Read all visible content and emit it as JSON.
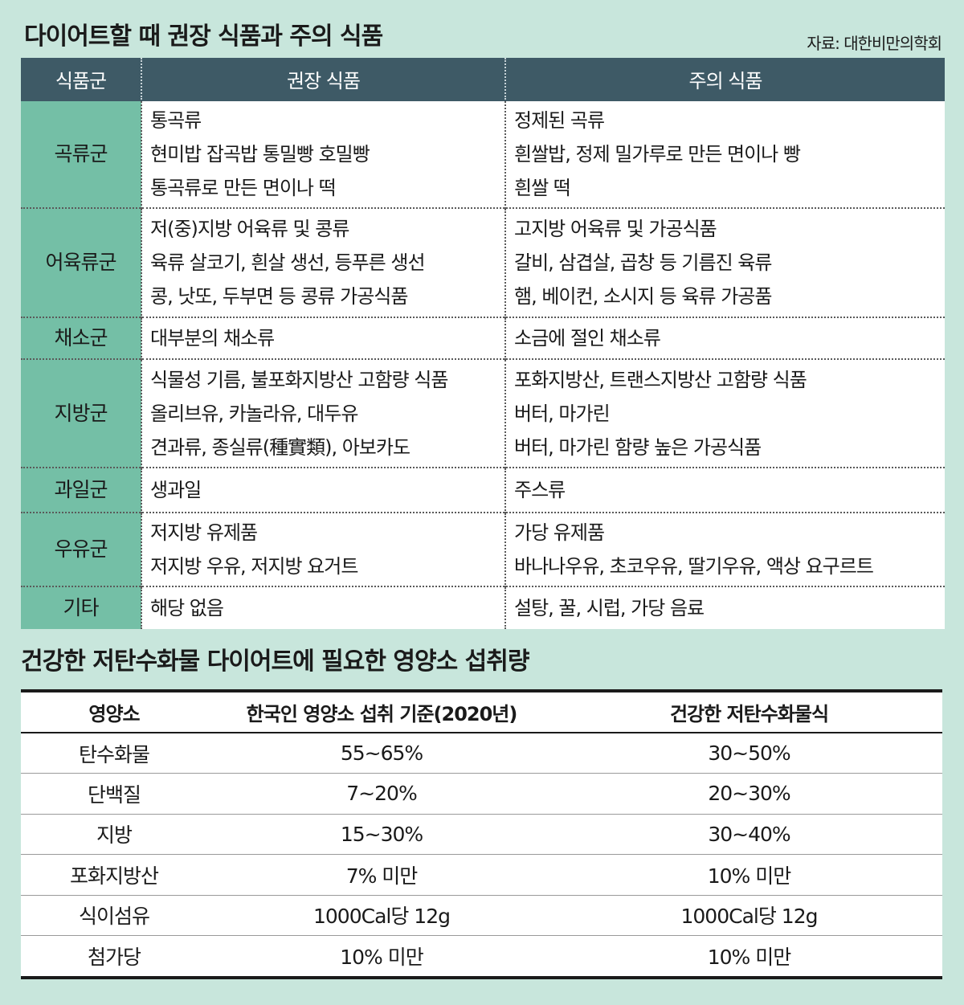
{
  "title1": "다이어트할 때 권장 식품과 주의 식품",
  "source": "자료: 대한비만의학회",
  "table1": {
    "headers": [
      "식품군",
      "권장 식품",
      "주의 식품"
    ],
    "rows": [
      {
        "group": "곡류군",
        "recommended": [
          "통곡류",
          "현미밥 잡곡밥 통밀빵 호밀빵",
          "통곡류로 만든 면이나 떡"
        ],
        "caution": [
          "정제된 곡류",
          "흰쌀밥, 정제 밀가루로 만든 면이나 빵",
          "흰쌀 떡"
        ]
      },
      {
        "group": "어육류군",
        "recommended": [
          "저(중)지방 어육류 및 콩류",
          "육류 살코기, 흰살 생선, 등푸른 생선",
          "콩, 낫또, 두부면 등 콩류 가공식품"
        ],
        "caution": [
          "고지방 어육류 및 가공식품",
          "갈비, 삼겹살, 곱창 등 기름진 육류",
          "햄, 베이컨, 소시지 등 육류 가공품"
        ]
      },
      {
        "group": "채소군",
        "recommended": [
          "대부분의 채소류"
        ],
        "caution": [
          "소금에 절인 채소류"
        ]
      },
      {
        "group": "지방군",
        "recommended": [
          "식물성 기름, 불포화지방산 고함량 식품",
          "올리브유, 카놀라유, 대두유",
          "견과류, 종실류(種實類), 아보카도"
        ],
        "caution": [
          "포화지방산, 트랜스지방산 고함량 식품",
          "버터, 마가린",
          "버터, 마가린 함량 높은 가공식품"
        ]
      },
      {
        "group": "과일군",
        "recommended": [
          "생과일"
        ],
        "caution": [
          "주스류"
        ]
      },
      {
        "group": "우유군",
        "recommended": [
          "저지방 유제품",
          "저지방 우유, 저지방 요거트"
        ],
        "caution": [
          "가당 유제품",
          "바나나우유, 초코우유, 딸기우유, 액상 요구르트"
        ]
      },
      {
        "group": "기타",
        "recommended": [
          "해당 없음"
        ],
        "caution": [
          "설탕, 꿀, 시럽, 가당 음료"
        ]
      }
    ]
  },
  "title2": "건강한 저탄수화물 다이어트에 필요한 영양소 섭취량",
  "table2": {
    "headers": [
      "영양소",
      "한국인 영양소 섭취 기준(2020년)",
      "건강한 저탄수화물식"
    ],
    "rows": [
      [
        "탄수화물",
        "55~65%",
        "30~50%"
      ],
      [
        "단백질",
        "7~20%",
        "20~30%"
      ],
      [
        "지방",
        "15~30%",
        "30~40%"
      ],
      [
        "포화지방산",
        "7% 미만",
        "10% 미만"
      ],
      [
        "식이섬유",
        "1000Cal당 12g",
        "1000Cal당 12g"
      ],
      [
        "첨가당",
        "10% 미만",
        "10% 미만"
      ]
    ]
  }
}
